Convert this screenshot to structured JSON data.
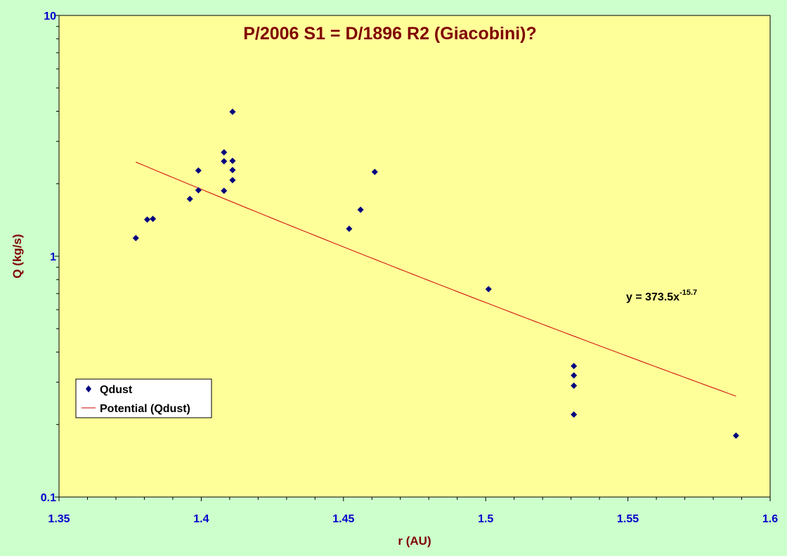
{
  "chart_data": {
    "type": "scatter",
    "title": "P/2006 S1 = D/1896 R2 (Giacobini)?",
    "xlabel": "r (AU)",
    "ylabel": "Q (kg/s)",
    "xlim": [
      1.35,
      1.6
    ],
    "ylim": [
      0.1,
      10
    ],
    "y_scale": "log",
    "x_ticks": [
      "1.35",
      "1.4",
      "1.45",
      "1.5",
      "1.55",
      "1.6"
    ],
    "y_ticks": [
      "0.1",
      "1",
      "10"
    ],
    "grid": false,
    "legend_position": "left",
    "colors": {
      "plot_background": "#ffff99",
      "page_background": "#ccffcc",
      "marker": "#000080",
      "trendline": "#cc0000",
      "tick_labels": "#0000cc",
      "titles": "#800000"
    },
    "series": [
      {
        "name": "Qdust",
        "marker": "diamond",
        "points": [
          [
            1.377,
            1.19
          ],
          [
            1.381,
            1.42
          ],
          [
            1.383,
            1.43
          ],
          [
            1.396,
            1.73
          ],
          [
            1.399,
            2.27
          ],
          [
            1.399,
            1.88
          ],
          [
            1.408,
            2.7
          ],
          [
            1.408,
            2.48
          ],
          [
            1.408,
            1.87
          ],
          [
            1.411,
            3.98
          ],
          [
            1.411,
            2.49
          ],
          [
            1.411,
            2.28
          ],
          [
            1.411,
            2.07
          ],
          [
            1.452,
            1.3
          ],
          [
            1.456,
            1.56
          ],
          [
            1.461,
            2.24
          ],
          [
            1.501,
            0.73
          ],
          [
            1.531,
            0.35
          ],
          [
            1.531,
            0.32
          ],
          [
            1.531,
            0.29
          ],
          [
            1.531,
            0.22
          ],
          [
            1.588,
            0.18
          ]
        ]
      },
      {
        "name": "Potential (Qdust)",
        "type": "trendline",
        "equation": "y = 373.5x",
        "exponent": "-15.7",
        "coefficient": 373.5,
        "power": -15.7,
        "x_range": [
          1.377,
          1.588
        ]
      }
    ]
  }
}
